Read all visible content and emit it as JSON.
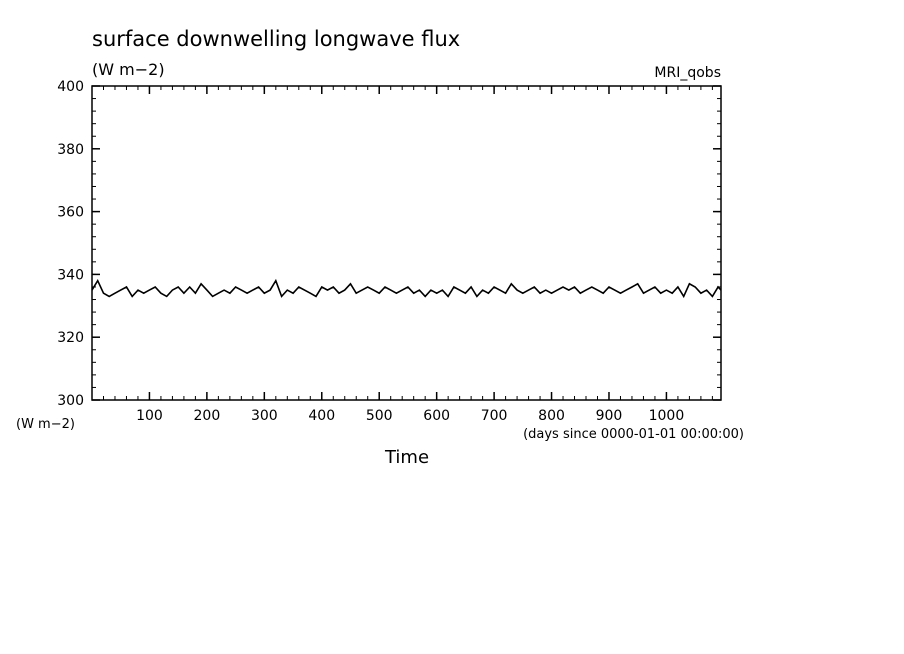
{
  "chart_data": {
    "type": "line",
    "title": "surface downwelling longwave flux",
    "subtitle": "(W m−2)",
    "source_label": "MRI_qobs",
    "ylabel_unit": "(W m−2)",
    "xlabel": "Time",
    "xunits": "(days since 0000-01-01 00:00:00)",
    "xlim": [
      0,
      1095
    ],
    "ylim": [
      300,
      400
    ],
    "xticks": [
      100,
      200,
      300,
      400,
      500,
      600,
      700,
      800,
      900,
      1000
    ],
    "yticks": [
      300,
      320,
      340,
      360,
      380,
      400
    ],
    "grid": false,
    "series": [
      {
        "color": "#000000",
        "x": [
          0,
          10,
          20,
          30,
          40,
          50,
          60,
          70,
          80,
          90,
          100,
          110,
          120,
          130,
          140,
          150,
          160,
          170,
          180,
          190,
          200,
          210,
          220,
          230,
          240,
          250,
          260,
          270,
          280,
          290,
          300,
          310,
          320,
          330,
          340,
          350,
          360,
          370,
          380,
          390,
          400,
          410,
          420,
          430,
          440,
          450,
          460,
          470,
          480,
          490,
          500,
          510,
          520,
          530,
          540,
          550,
          560,
          570,
          580,
          590,
          600,
          610,
          620,
          630,
          640,
          650,
          660,
          670,
          680,
          690,
          700,
          710,
          720,
          730,
          740,
          750,
          760,
          770,
          780,
          790,
          800,
          810,
          820,
          830,
          840,
          850,
          860,
          870,
          880,
          890,
          900,
          910,
          920,
          930,
          940,
          950,
          960,
          970,
          980,
          990,
          1000,
          1010,
          1020,
          1030,
          1040,
          1050,
          1060,
          1070,
          1080,
          1090,
          1095
        ],
        "y": [
          335,
          338,
          334,
          333,
          334,
          335,
          336,
          333,
          335,
          334,
          335,
          336,
          334,
          333,
          335,
          336,
          334,
          336,
          334,
          337,
          335,
          333,
          334,
          335,
          334,
          336,
          335,
          334,
          335,
          336,
          334,
          335,
          338,
          333,
          335,
          334,
          336,
          335,
          334,
          333,
          336,
          335,
          336,
          334,
          335,
          337,
          334,
          335,
          336,
          335,
          334,
          336,
          335,
          334,
          335,
          336,
          334,
          335,
          333,
          335,
          334,
          335,
          333,
          336,
          335,
          334,
          336,
          333,
          335,
          334,
          336,
          335,
          334,
          337,
          335,
          334,
          335,
          336,
          334,
          335,
          334,
          335,
          336,
          335,
          336,
          334,
          335,
          336,
          335,
          334,
          336,
          335,
          334,
          335,
          336,
          337,
          334,
          335,
          336,
          334,
          335,
          334,
          336,
          333,
          337,
          336,
          334,
          335,
          333,
          336,
          335
        ]
      }
    ]
  }
}
